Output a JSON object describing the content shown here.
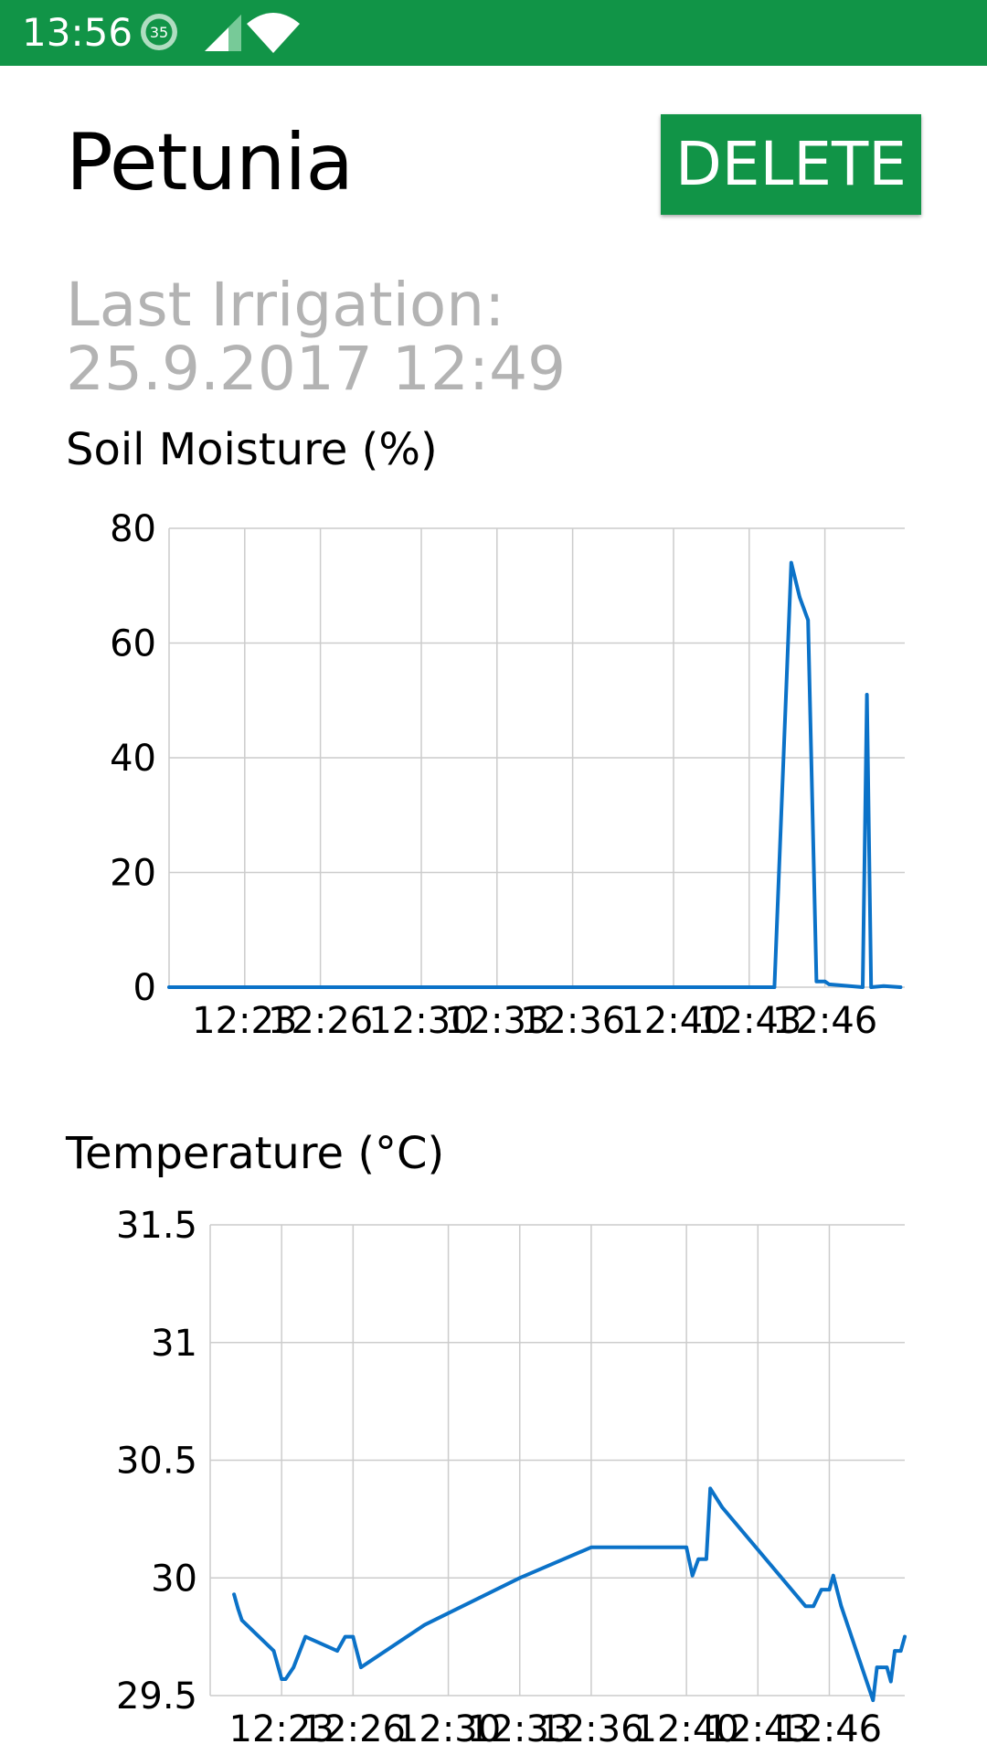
{
  "status_bar": {
    "time": "13:56",
    "notification_count": "35",
    "background_color": "#119447",
    "icons": [
      "cell-signal-icon",
      "wifi-icon"
    ]
  },
  "header": {
    "title": "Petunia",
    "delete_label": "DELETE",
    "accent_color": "#119447"
  },
  "irrigation": {
    "label": "Last Irrigation:",
    "value": "25.9.2017 12:49"
  },
  "chart_data": [
    {
      "type": "line",
      "title": "Soil Moisture (%)",
      "xlabel": "",
      "ylabel": "",
      "ylim": [
        0,
        80
      ],
      "yticks": [
        0,
        20,
        40,
        60,
        80
      ],
      "x_ticks": [
        "12:23",
        "12:26",
        "12:30",
        "12:33",
        "12:36",
        "12:40",
        "12:43",
        "12:46"
      ],
      "grid": true,
      "line_color": "#0b72c8",
      "series": [
        {
          "x": [
            "12:20",
            "12:21",
            "12:22",
            "12:23",
            "12:24",
            "12:25",
            "12:26",
            "12:27",
            "12:28",
            "12:29",
            "12:30",
            "12:31",
            "12:32",
            "12:33",
            "12:34",
            "12:35",
            "12:36",
            "12:37",
            "12:38",
            "12:39",
            "12:40",
            "12:41",
            "12:42",
            "12:43",
            "12:44",
            "12:44:40",
            "12:45",
            "12:45:20",
            "12:45:40",
            "12:46",
            "12:46:10",
            "12:47:30",
            "12:47:40",
            "12:47:50",
            "12:48:20",
            "12:49"
          ],
          "values": [
            0,
            0,
            0,
            0,
            0,
            0,
            0,
            0,
            0,
            0,
            0,
            0,
            0,
            0,
            0,
            0,
            0,
            0,
            0,
            0,
            0,
            0,
            0,
            0,
            0,
            74,
            68,
            64,
            1,
            1,
            0.5,
            0,
            51,
            0,
            0.2,
            0
          ]
        }
      ]
    },
    {
      "type": "line",
      "title": "Temperature (°C)",
      "xlabel": "",
      "ylabel": "",
      "ylim": [
        29.5,
        31.5
      ],
      "yticks": [
        29.5,
        30,
        30.5,
        31,
        31.5
      ],
      "x_ticks": [
        "12:23",
        "12:26",
        "12:30",
        "12:33",
        "12:36",
        "12:40",
        "12:43",
        "12:46"
      ],
      "grid": true,
      "line_color": "#0b72c8",
      "series": [
        {
          "x": [
            "12:21",
            "12:21:10",
            "12:21:20",
            "12:22:40",
            "12:23",
            "12:23:10",
            "12:23:30",
            "12:24",
            "12:25:20",
            "12:25:40",
            "12:26",
            "12:26:20",
            "12:29",
            "12:33",
            "12:36",
            "12:38",
            "12:40",
            "12:40:15",
            "12:40:30",
            "12:40:50",
            "12:41",
            "12:41:30",
            "12:45",
            "12:45:20",
            "12:45:40",
            "12:46",
            "12:46:10",
            "12:46:30",
            "12:47:50",
            "12:48:00",
            "12:48:10",
            "12:48:25",
            "12:48:35",
            "12:48:45",
            "12:49",
            "12:49:10"
          ],
          "values": [
            29.93,
            29.87,
            29.82,
            29.69,
            29.57,
            29.57,
            29.62,
            29.75,
            29.69,
            29.75,
            29.75,
            29.62,
            29.8,
            30,
            30.13,
            30.13,
            30.13,
            30.01,
            30.08,
            30.08,
            30.38,
            30.3,
            29.88,
            29.88,
            29.95,
            29.95,
            30.01,
            29.88,
            29.48,
            29.62,
            29.62,
            29.62,
            29.56,
            29.69,
            29.69,
            29.75
          ]
        }
      ]
    }
  ]
}
